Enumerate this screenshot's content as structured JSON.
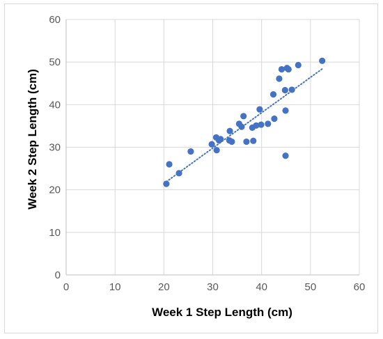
{
  "chart_data": {
    "type": "scatter",
    "title": "",
    "xlabel": "Week 1 Step Length (cm)",
    "ylabel": "Week 2 Step Length (cm)",
    "xlim": [
      0,
      60
    ],
    "ylim": [
      0,
      60
    ],
    "x_ticks": [
      0,
      10,
      20,
      30,
      40,
      50,
      60
    ],
    "y_ticks": [
      0,
      10,
      20,
      30,
      40,
      50,
      60
    ],
    "grid": true,
    "legend": "none",
    "series": [
      {
        "color": "#4472c4",
        "points": [
          [
            20.5,
            21.4
          ],
          [
            21.1,
            26.0
          ],
          [
            23.1,
            23.9
          ],
          [
            25.5,
            29.0
          ],
          [
            29.8,
            30.7
          ],
          [
            30.7,
            32.3
          ],
          [
            30.8,
            29.3
          ],
          [
            31.3,
            31.6
          ],
          [
            31.6,
            31.9
          ],
          [
            33.4,
            31.6
          ],
          [
            33.5,
            33.8
          ],
          [
            33.9,
            31.3
          ],
          [
            35.4,
            35.5
          ],
          [
            35.9,
            34.8
          ],
          [
            36.3,
            37.3
          ],
          [
            36.9,
            31.3
          ],
          [
            38.1,
            34.6
          ],
          [
            38.3,
            31.5
          ],
          [
            38.9,
            35.1
          ],
          [
            39.6,
            38.9
          ],
          [
            39.9,
            35.3
          ],
          [
            41.3,
            35.5
          ],
          [
            42.4,
            42.4
          ],
          [
            42.6,
            36.7
          ],
          [
            43.6,
            46.1
          ],
          [
            44.1,
            48.3
          ],
          [
            44.8,
            43.4
          ],
          [
            44.9,
            38.6
          ],
          [
            44.9,
            28.0
          ],
          [
            45.2,
            48.6
          ],
          [
            45.5,
            48.3
          ],
          [
            46.2,
            43.5
          ],
          [
            47.5,
            49.3
          ],
          [
            52.4,
            50.3
          ]
        ],
        "trendline": {
          "style": "dotted",
          "x_start": 20.5,
          "y_start": 21.9,
          "x_end": 52.4,
          "y_end": 48.4
        }
      }
    ]
  }
}
